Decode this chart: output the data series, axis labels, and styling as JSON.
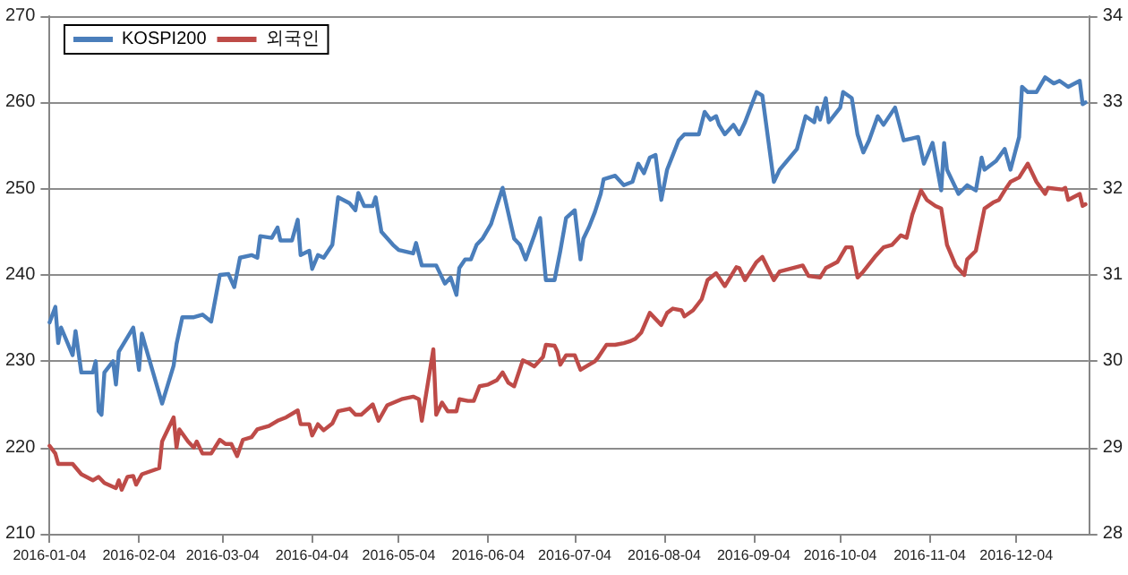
{
  "chart_data": {
    "type": "line",
    "xlim": [
      "2016-01-04",
      "2016-12-29"
    ],
    "xticks": [
      "2016-01-04",
      "2016-02-04",
      "2016-03-04",
      "2016-04-04",
      "2016-05-04",
      "2016-06-04",
      "2016-07-04",
      "2016-08-04",
      "2016-09-04",
      "2016-10-04",
      "2016-11-04",
      "2016-12-04"
    ],
    "ylim": [
      210,
      270
    ],
    "yticks": [
      210,
      220,
      230,
      240,
      250,
      260,
      270
    ],
    "y2lim": [
      28,
      34
    ],
    "y2ticks": [
      28,
      29,
      30,
      31,
      32,
      33,
      34
    ],
    "grid": "y",
    "legend": "top left",
    "marker": "none",
    "line_style": "solid",
    "series": [
      {
        "name": "KOSPI200",
        "color": "#4a7ebb",
        "x": [
          "2016-01-04",
          "2016-01-06",
          "2016-01-07",
          "2016-01-08",
          "2016-01-12",
          "2016-01-13",
          "2016-01-15",
          "2016-01-19",
          "2016-01-20",
          "2016-01-21",
          "2016-01-22",
          "2016-01-23",
          "2016-01-26",
          "2016-01-27",
          "2016-01-28",
          "2016-02-02",
          "2016-02-04",
          "2016-02-05",
          "2016-02-06",
          "2016-02-12",
          "2016-02-16",
          "2016-02-17",
          "2016-02-19",
          "2016-02-23",
          "2016-02-26",
          "2016-02-29",
          "2016-03-03",
          "2016-03-06",
          "2016-03-08",
          "2016-03-10",
          "2016-03-14",
          "2016-03-16",
          "2016-03-17",
          "2016-03-21",
          "2016-03-23",
          "2016-03-24",
          "2016-03-28",
          "2016-03-30",
          "2016-03-31",
          "2016-04-03",
          "2016-04-04",
          "2016-04-06",
          "2016-04-08",
          "2016-04-11",
          "2016-04-13",
          "2016-04-17",
          "2016-04-19",
          "2016-04-20",
          "2016-04-22",
          "2016-04-25",
          "2016-04-26",
          "2016-04-28",
          "2016-05-02",
          "2016-05-04",
          "2016-05-09",
          "2016-05-10",
          "2016-05-12",
          "2016-05-17",
          "2016-05-20",
          "2016-05-22",
          "2016-05-24",
          "2016-05-25",
          "2016-05-27",
          "2016-05-29",
          "2016-05-31",
          "2016-06-02",
          "2016-06-05",
          "2016-06-09",
          "2016-06-13",
          "2016-06-15",
          "2016-06-17",
          "2016-06-20",
          "2016-06-22",
          "2016-06-24",
          "2016-06-27",
          "2016-06-29",
          "2016-07-01",
          "2016-07-04",
          "2016-07-06",
          "2016-07-07",
          "2016-07-09",
          "2016-07-11",
          "2016-07-13",
          "2016-07-14",
          "2016-07-18",
          "2016-07-21",
          "2016-07-24",
          "2016-07-26",
          "2016-07-28",
          "2016-07-30",
          "2016-08-01",
          "2016-08-03",
          "2016-08-05",
          "2016-08-07",
          "2016-08-09",
          "2016-08-11",
          "2016-08-16",
          "2016-08-18",
          "2016-08-20",
          "2016-08-22",
          "2016-08-23",
          "2016-08-25",
          "2016-08-28",
          "2016-08-30",
          "2016-09-01",
          "2016-09-05",
          "2016-09-07",
          "2016-09-11",
          "2016-09-13",
          "2016-09-19",
          "2016-09-22",
          "2016-09-25",
          "2016-09-26",
          "2016-09-27",
          "2016-09-29",
          "2016-09-30",
          "2016-10-04",
          "2016-10-05",
          "2016-10-08",
          "2016-10-10",
          "2016-10-12",
          "2016-10-14",
          "2016-10-17",
          "2016-10-19",
          "2016-10-23",
          "2016-10-26",
          "2016-10-31",
          "2016-11-02",
          "2016-11-05",
          "2016-11-08",
          "2016-11-09",
          "2016-11-10",
          "2016-11-14",
          "2016-11-17",
          "2016-11-20",
          "2016-11-22",
          "2016-11-23",
          "2016-11-27",
          "2016-11-30",
          "2016-12-02",
          "2016-12-05",
          "2016-12-06",
          "2016-12-08",
          "2016-12-11",
          "2016-12-14",
          "2016-12-17",
          "2016-12-19",
          "2016-12-22",
          "2016-12-26",
          "2016-12-27",
          "2016-12-28"
        ],
        "values": [
          234.5,
          236.3,
          232.1,
          233.9,
          230.7,
          233.5,
          228.7,
          228.7,
          230.0,
          224.2,
          223.8,
          228.7,
          230.0,
          227.3,
          231.1,
          233.9,
          229.0,
          233.2,
          232.0,
          225.1,
          229.5,
          232.0,
          235.1,
          235.1,
          235.4,
          234.6,
          240.0,
          240.1,
          238.6,
          242.0,
          242.3,
          242.0,
          244.5,
          244.3,
          245.5,
          244.0,
          244.0,
          246.4,
          242.3,
          242.8,
          240.7,
          242.3,
          242.0,
          243.5,
          249.0,
          248.3,
          247.5,
          249.5,
          248.0,
          248.0,
          249.0,
          245.0,
          243.5,
          242.9,
          242.5,
          243.7,
          241.1,
          241.1,
          239.0,
          239.7,
          237.7,
          240.8,
          241.8,
          241.8,
          243.5,
          244.2,
          245.9,
          250.1,
          244.2,
          243.5,
          241.8,
          244.6,
          246.6,
          239.4,
          239.4,
          242.8,
          246.6,
          247.5,
          241.8,
          244.2,
          245.6,
          247.3,
          249.4,
          251.1,
          251.5,
          250.4,
          250.8,
          252.9,
          251.8,
          253.6,
          253.9,
          248.7,
          252.2,
          253.9,
          255.6,
          256.3,
          256.3,
          258.9,
          258.0,
          258.4,
          257.4,
          256.3,
          257.4,
          256.3,
          257.7,
          261.2,
          260.8,
          250.8,
          252.2,
          254.6,
          258.4,
          257.7,
          259.4,
          258.0,
          260.5,
          257.7,
          259.4,
          261.2,
          260.5,
          256.3,
          254.2,
          255.6,
          258.4,
          257.4,
          259.4,
          255.6,
          256.0,
          252.9,
          255.3,
          249.8,
          255.3,
          252.2,
          249.4,
          250.4,
          249.8,
          253.6,
          252.2,
          253.2,
          254.6,
          252.2,
          256.0,
          261.8,
          261.2,
          261.2,
          262.9,
          262.2,
          262.5,
          261.8,
          262.5,
          259.8,
          260.0
        ]
      },
      {
        "name": "외국인",
        "color": "#be4b48",
        "axis": "y2",
        "x": [
          "2016-01-04",
          "2016-01-06",
          "2016-01-07",
          "2016-01-12",
          "2016-01-15",
          "2016-01-19",
          "2016-01-21",
          "2016-01-23",
          "2016-01-27",
          "2016-01-28",
          "2016-01-29",
          "2016-01-31",
          "2016-02-02",
          "2016-02-03",
          "2016-02-05",
          "2016-02-11",
          "2016-02-12",
          "2016-02-16",
          "2016-02-17",
          "2016-02-18",
          "2016-02-21",
          "2016-02-23",
          "2016-02-24",
          "2016-02-26",
          "2016-02-29",
          "2016-03-03",
          "2016-03-05",
          "2016-03-07",
          "2016-03-09",
          "2016-03-11",
          "2016-03-14",
          "2016-03-16",
          "2016-03-17",
          "2016-03-20",
          "2016-03-23",
          "2016-03-26",
          "2016-03-30",
          "2016-03-31",
          "2016-04-03",
          "2016-04-04",
          "2016-04-06",
          "2016-04-08",
          "2016-04-11",
          "2016-04-13",
          "2016-04-17",
          "2016-04-19",
          "2016-04-21",
          "2016-04-25",
          "2016-04-27",
          "2016-04-30",
          "2016-05-05",
          "2016-05-09",
          "2016-05-11",
          "2016-05-12",
          "2016-05-16",
          "2016-05-17",
          "2016-05-19",
          "2016-05-21",
          "2016-05-24",
          "2016-05-25",
          "2016-05-28",
          "2016-05-30",
          "2016-06-01",
          "2016-06-04",
          "2016-06-07",
          "2016-06-09",
          "2016-06-11",
          "2016-06-13",
          "2016-06-16",
          "2016-06-18",
          "2016-06-20",
          "2016-06-23",
          "2016-06-24",
          "2016-06-27",
          "2016-06-28",
          "2016-06-29",
          "2016-07-01",
          "2016-07-04",
          "2016-07-06",
          "2016-07-09",
          "2016-07-11",
          "2016-07-12",
          "2016-07-15",
          "2016-07-18",
          "2016-07-21",
          "2016-07-23",
          "2016-07-25",
          "2016-07-27",
          "2016-07-30",
          "2016-08-01",
          "2016-08-03",
          "2016-08-05",
          "2016-08-07",
          "2016-08-10",
          "2016-08-11",
          "2016-08-14",
          "2016-08-17",
          "2016-08-19",
          "2016-08-22",
          "2016-08-25",
          "2016-08-29",
          "2016-08-30",
          "2016-09-01",
          "2016-09-05",
          "2016-09-07",
          "2016-09-11",
          "2016-09-13",
          "2016-09-21",
          "2016-09-23",
          "2016-09-27",
          "2016-09-29",
          "2016-10-03",
          "2016-10-06",
          "2016-10-08",
          "2016-10-10",
          "2016-10-12",
          "2016-10-16",
          "2016-10-19",
          "2016-10-22",
          "2016-10-25",
          "2016-10-27",
          "2016-10-29",
          "2016-11-01",
          "2016-11-03",
          "2016-11-06",
          "2016-11-08",
          "2016-11-10",
          "2016-11-13",
          "2016-11-16",
          "2016-11-17",
          "2016-11-20",
          "2016-11-23",
          "2016-11-26",
          "2016-11-28",
          "2016-11-30",
          "2016-12-02",
          "2016-12-05",
          "2016-12-08",
          "2016-12-11",
          "2016-12-14",
          "2016-12-15",
          "2016-12-20",
          "2016-12-21",
          "2016-12-22",
          "2016-12-26",
          "2016-12-27",
          "2016-12-28"
        ],
        "values": [
          29.02,
          28.93,
          28.81,
          28.81,
          28.69,
          28.62,
          28.66,
          28.59,
          28.53,
          28.62,
          28.51,
          28.66,
          28.67,
          28.57,
          28.69,
          28.76,
          29.07,
          29.35,
          29.0,
          29.21,
          29.07,
          29.0,
          29.07,
          28.93,
          28.93,
          29.09,
          29.04,
          29.04,
          28.9,
          29.09,
          29.12,
          29.21,
          29.22,
          29.25,
          29.31,
          29.35,
          29.43,
          29.27,
          29.27,
          29.14,
          29.27,
          29.2,
          29.28,
          29.42,
          29.45,
          29.38,
          29.38,
          29.5,
          29.31,
          29.49,
          29.56,
          29.59,
          29.56,
          29.31,
          30.14,
          29.38,
          29.52,
          29.42,
          29.42,
          29.56,
          29.54,
          29.54,
          29.71,
          29.73,
          29.78,
          29.87,
          29.75,
          29.71,
          30.01,
          29.98,
          29.94,
          30.05,
          30.19,
          30.18,
          30.11,
          29.96,
          30.07,
          30.07,
          29.9,
          29.96,
          30.0,
          30.04,
          30.19,
          30.19,
          30.21,
          30.23,
          30.26,
          30.33,
          30.56,
          30.49,
          30.42,
          30.56,
          30.61,
          30.59,
          30.52,
          30.59,
          30.72,
          30.94,
          31.02,
          30.87,
          31.09,
          31.08,
          30.94,
          31.15,
          31.21,
          30.94,
          31.04,
          31.11,
          30.99,
          30.97,
          31.08,
          31.15,
          31.32,
          31.32,
          30.97,
          31.04,
          31.21,
          31.32,
          31.35,
          31.46,
          31.43,
          31.7,
          31.98,
          31.87,
          31.8,
          31.77,
          31.35,
          31.11,
          31.0,
          31.18,
          31.28,
          31.77,
          31.84,
          31.87,
          31.98,
          32.08,
          32.13,
          32.29,
          32.08,
          31.94,
          32.01,
          31.99,
          32.01,
          31.87,
          31.94,
          31.8,
          31.82
        ]
      }
    ]
  }
}
